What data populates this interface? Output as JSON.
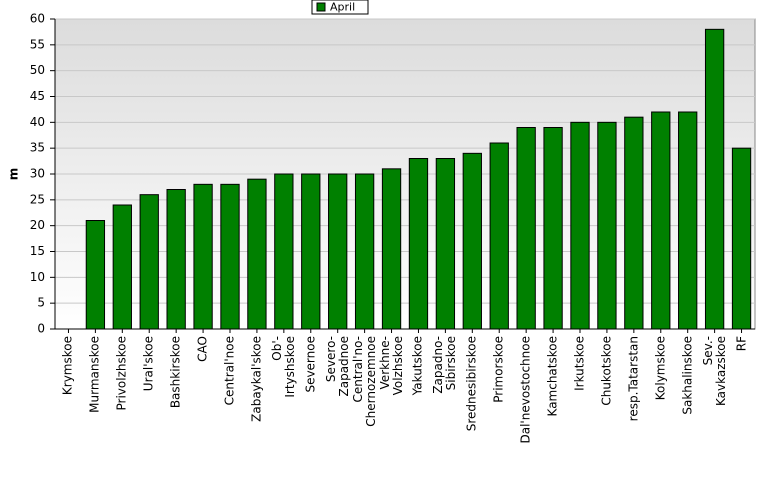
{
  "chart_data": {
    "type": "bar",
    "y_label": "m",
    "categories": [
      "Krymskoe",
      "Murmanskoe",
      "Privolzhskoe",
      "Ural'skoe",
      "Bashkirskoe",
      "CAO",
      "Central'noe",
      "Zabaykal'skoe",
      "Ob'-\nIrtyshskoe",
      "Severnoe",
      "Severo-\nZapadnoe",
      "Central'no-\nChernozemnoe",
      "Verkhne-\nVolzhskoe",
      "Yakutskoe",
      "Zapadno-\nSibirskoe",
      "Srednesibirskoe",
      "Primorskoe",
      "Dal'nevostochnoe",
      "Kamchatskoe",
      "Irkutskoe",
      "Chukotskoe",
      "resp.Tatarstan",
      "Kolymskoe",
      "Sakhalinskoe",
      "Sev.-\nKavkazskoe",
      "RF"
    ],
    "series": [
      {
        "name": "April",
        "color": "#008000",
        "values": [
          0,
          21,
          24,
          26,
          27,
          28,
          28,
          29,
          30,
          30,
          30,
          30,
          31,
          33,
          33,
          34,
          36,
          39,
          39,
          40,
          40,
          41,
          42,
          42,
          58,
          35
        ]
      }
    ],
    "ylim": [
      0,
      60
    ],
    "yticks": [
      0,
      5,
      10,
      15,
      20,
      25,
      30,
      35,
      40,
      45,
      50,
      55,
      60
    ],
    "grid": true,
    "legend": "top"
  }
}
